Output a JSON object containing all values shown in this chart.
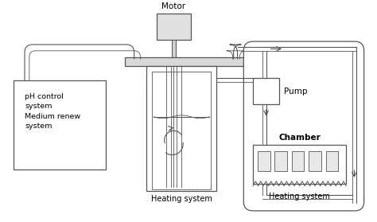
{
  "bg_color": "#ffffff",
  "lc": "#555555",
  "lc2": "#888888",
  "motor_label": "Motor",
  "pump_label": "Pump",
  "chamber_label": "Chamber",
  "hs_label1": "Heating system",
  "hs_label2": "Heating system",
  "ph_label": "pH control\nsystem\nMedium renew\nsystem",
  "figw": 4.74,
  "figh": 2.79,
  "dpi": 100
}
